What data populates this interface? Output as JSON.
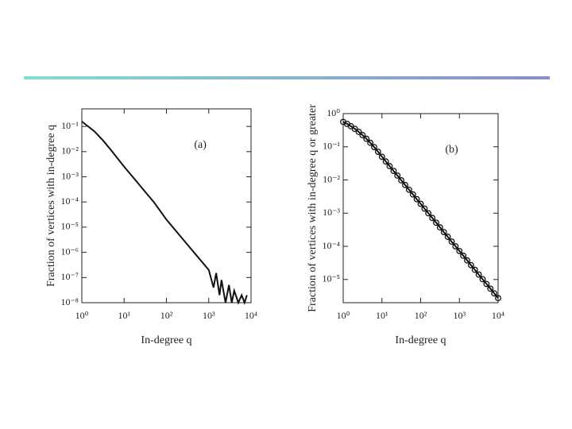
{
  "chart_data": [
    {
      "type": "line",
      "annotation": "(a)",
      "x_label": "In-degree  q",
      "y_label": "Fraction of vertices with in-degree q",
      "x": [
        1,
        2,
        3.16,
        5,
        10,
        20,
        31.6,
        50,
        100,
        200,
        316,
        500,
        1000,
        1300,
        1500,
        1800,
        2000,
        2500,
        3000,
        3500,
        4000,
        5000,
        6000,
        7000,
        8000
      ],
      "values": [
        0.158,
        0.063,
        0.028,
        0.011,
        0.0025,
        0.00063,
        0.00025,
        0.0001,
        2e-05,
        5e-06,
        2e-06,
        8e-07,
        2e-07,
        4e-08,
        1.5e-07,
        2e-08,
        8e-08,
        1e-08,
        5e-08,
        1e-08,
        3e-08,
        1e-08,
        2e-08,
        1e-08,
        2e-08
      ],
      "color": "#111111",
      "xscale": "log",
      "yscale": "log",
      "xlim": [
        1,
        10000
      ],
      "ylim": [
        1e-08,
        0.5
      ],
      "xticks": [
        {
          "value": 1,
          "label": "10⁰"
        },
        {
          "value": 10,
          "label": "10¹"
        },
        {
          "value": 100,
          "label": "10²"
        },
        {
          "value": 1000,
          "label": "10³"
        },
        {
          "value": 10000,
          "label": "10⁴"
        }
      ],
      "yticks": [
        {
          "value": 1e-08,
          "label": "10⁻⁸"
        },
        {
          "value": 1e-07,
          "label": "10⁻⁷"
        },
        {
          "value": 1e-06,
          "label": "10⁻⁶"
        },
        {
          "value": 1e-05,
          "label": "10⁻⁵"
        },
        {
          "value": 0.0001,
          "label": "10⁻⁴"
        },
        {
          "value": 0.001,
          "label": "10⁻³"
        },
        {
          "value": 0.01,
          "label": "10⁻²"
        },
        {
          "value": 0.1,
          "label": "10⁻¹"
        }
      ]
    },
    {
      "type": "line",
      "annotation": "(b)",
      "marker": "circle",
      "x_label": "In-degree  q",
      "y_label": "Fraction of vertices with in-degree q or greater",
      "x": [
        1,
        1.26,
        1.58,
        2,
        2.51,
        3.16,
        3.98,
        5.01,
        6.31,
        7.94,
        10,
        12.6,
        15.8,
        20,
        25.1,
        31.6,
        39.8,
        50.1,
        63.1,
        79.4,
        100,
        126,
        158,
        200,
        251,
        316,
        398,
        501,
        631,
        794,
        1000,
        1259,
        1585,
        1995,
        2512,
        3162,
        3981,
        5012,
        6310,
        7943,
        10000
      ],
      "values": [
        0.562,
        0.49,
        0.417,
        0.347,
        0.282,
        0.224,
        0.174,
        0.132,
        0.0977,
        0.0708,
        0.0501,
        0.0361,
        0.0261,
        0.0188,
        0.0136,
        0.00977,
        0.00705,
        0.00508,
        0.00366,
        0.00264,
        0.00191,
        0.00137,
        0.000991,
        0.000715,
        0.000515,
        0.000372,
        0.000268,
        0.000193,
        0.000139,
        0.0001,
        7.24e-05,
        5.22e-05,
        3.77e-05,
        2.72e-05,
        1.96e-05,
        1.41e-05,
        1.02e-05,
        7.35e-06,
        5.3e-06,
        3.82e-06,
        2.75e-06
      ],
      "color": "#111111",
      "xscale": "log",
      "yscale": "log",
      "xlim": [
        1,
        10000
      ],
      "ylim": [
        2e-06,
        1
      ],
      "xticks": [
        {
          "value": 1,
          "label": "10⁰"
        },
        {
          "value": 10,
          "label": "10¹"
        },
        {
          "value": 100,
          "label": "10²"
        },
        {
          "value": 1000,
          "label": "10³"
        },
        {
          "value": 10000,
          "label": "10⁴"
        }
      ],
      "yticks": [
        {
          "value": 1e-05,
          "label": "10⁻⁵"
        },
        {
          "value": 0.0001,
          "label": "10⁻⁴"
        },
        {
          "value": 0.001,
          "label": "10⁻³"
        },
        {
          "value": 0.01,
          "label": "10⁻²"
        },
        {
          "value": 0.1,
          "label": "10⁻¹"
        },
        {
          "value": 1,
          "label": "10⁰"
        }
      ]
    }
  ]
}
